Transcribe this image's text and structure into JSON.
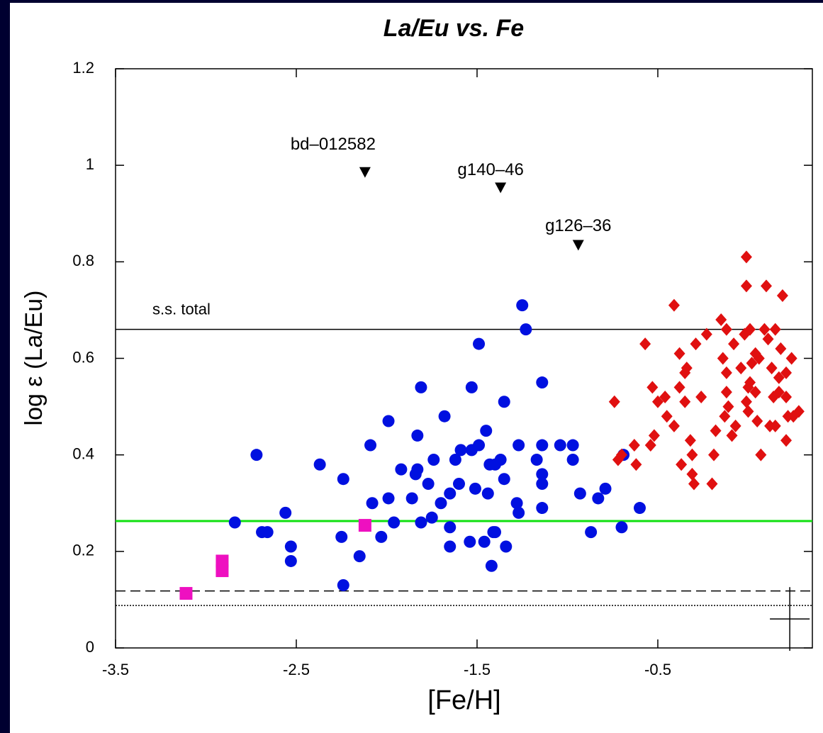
{
  "chart_data": {
    "type": "scatter",
    "title": "La/Eu  vs. Fe",
    "xlabel": "[Fe/H]",
    "ylabel": "log ε (La/Eu)",
    "xlim": [
      -3.5,
      0.355
    ],
    "ylim": [
      0,
      1.2
    ],
    "xticks": [
      -3.5,
      -2.5,
      -1.5,
      -0.5
    ],
    "yticks": [
      0,
      0.2,
      0.4,
      0.6,
      0.8,
      1,
      1.2
    ],
    "series": [
      {
        "marker": "circle",
        "color": "#0010e0",
        "x": [
          -2.72,
          -2.84,
          -2.69,
          -2.66,
          -2.56,
          -2.53,
          -2.53,
          -2.37,
          -2.24,
          -2.25,
          -2.24,
          -2.15,
          -2.09,
          -2.08,
          -2.03,
          -1.99,
          -1.99,
          -1.96,
          -1.92,
          -1.86,
          -1.84,
          -1.81,
          -1.83,
          -1.81,
          -1.83,
          -1.77,
          -1.75,
          -1.68,
          -1.74,
          -1.7,
          -1.65,
          -1.62,
          -1.65,
          -1.65,
          -1.6,
          -1.59,
          -1.53,
          -1.49,
          -1.53,
          -1.54,
          -1.49,
          -1.51,
          -1.46,
          -1.45,
          -1.43,
          -1.42,
          -1.4,
          -1.44,
          -1.4,
          -1.35,
          -1.35,
          -1.34,
          -1.28,
          -1.27,
          -1.27,
          -1.25,
          -1.23,
          -1.17,
          -1.14,
          -1.14,
          -1.14,
          -1.14,
          -1.14,
          -1.04,
          -0.97,
          -0.97,
          -0.93,
          -0.87,
          -0.83,
          -0.79,
          -0.69,
          -0.7,
          -0.6,
          -1.37,
          -1.41
        ],
        "y": [
          0.4,
          0.26,
          0.24,
          0.24,
          0.28,
          0.21,
          0.18,
          0.38,
          0.35,
          0.23,
          0.13,
          0.19,
          0.42,
          0.3,
          0.23,
          0.31,
          0.47,
          0.26,
          0.37,
          0.31,
          0.36,
          0.54,
          0.44,
          0.26,
          0.37,
          0.34,
          0.27,
          0.48,
          0.39,
          0.3,
          0.32,
          0.39,
          0.21,
          0.25,
          0.34,
          0.41,
          0.41,
          0.42,
          0.54,
          0.22,
          0.63,
          0.33,
          0.22,
          0.45,
          0.38,
          0.17,
          0.38,
          0.32,
          0.24,
          0.51,
          0.35,
          0.21,
          0.3,
          0.28,
          0.42,
          0.71,
          0.66,
          0.39,
          0.55,
          0.42,
          0.36,
          0.34,
          0.29,
          0.42,
          0.42,
          0.39,
          0.32,
          0.24,
          0.31,
          0.33,
          0.4,
          0.25,
          0.29,
          0.39,
          0.24
        ]
      },
      {
        "marker": "diamond",
        "color": "#e01010",
        "x": [
          -0.74,
          -0.7,
          -0.63,
          -0.62,
          -0.57,
          -0.54,
          -0.53,
          -0.52,
          -0.5,
          -0.46,
          -0.45,
          -0.41,
          -0.41,
          -0.38,
          -0.38,
          -0.37,
          -0.35,
          -0.35,
          -0.34,
          -0.32,
          -0.31,
          -0.31,
          -0.3,
          -0.29,
          -0.26,
          -0.23,
          -0.2,
          -0.19,
          -0.18,
          -0.15,
          -0.14,
          -0.13,
          -0.12,
          -0.12,
          -0.12,
          -0.11,
          -0.09,
          -0.08,
          -0.07,
          -0.04,
          -0.02,
          -0.01,
          0,
          0,
          0.01,
          -0.01,
          0.01,
          0.02,
          0.04,
          0.04,
          0.05,
          0.06,
          0.07,
          0.09,
          0.1,
          0.11,
          0.12,
          0.13,
          0.14,
          0.15,
          0.15,
          0.17,
          0.17,
          0.18,
          0.19,
          0.21,
          0.21,
          0.21,
          0.22,
          0.24,
          0.25,
          0.28,
          -0.01,
          -0.72
        ],
        "y": [
          0.51,
          0.4,
          0.42,
          0.38,
          0.63,
          0.42,
          0.54,
          0.44,
          0.51,
          0.52,
          0.48,
          0.46,
          0.71,
          0.61,
          0.54,
          0.38,
          0.57,
          0.51,
          0.58,
          0.43,
          0.4,
          0.36,
          0.34,
          0.63,
          0.52,
          0.65,
          0.34,
          0.4,
          0.45,
          0.68,
          0.6,
          0.48,
          0.66,
          0.53,
          0.57,
          0.5,
          0.44,
          0.63,
          0.46,
          0.58,
          0.65,
          0.51,
          0.54,
          0.49,
          0.66,
          0.75,
          0.55,
          0.59,
          0.61,
          0.53,
          0.47,
          0.6,
          0.4,
          0.66,
          0.75,
          0.64,
          0.46,
          0.58,
          0.52,
          0.66,
          0.46,
          0.53,
          0.56,
          0.62,
          0.73,
          0.57,
          0.52,
          0.43,
          0.48,
          0.6,
          0.48,
          0.49,
          0.81,
          0.39
        ]
      },
      {
        "marker": "square",
        "color": "#ee10c0",
        "x": [
          -3.11,
          -2.91,
          -2.91,
          -2.12
        ],
        "y": [
          0.113,
          0.16,
          0.18,
          0.254
        ]
      },
      {
        "marker": "triangle-down",
        "color": "#000000",
        "x": [
          -2.12,
          -1.37,
          -0.94
        ],
        "y": [
          0.986,
          0.954,
          0.835
        ],
        "labels": [
          "bd–012582",
          "g140–46",
          "g126–36"
        ]
      }
    ],
    "reference_lines": [
      {
        "y": 0.66,
        "color": "#000000",
        "style": "solid",
        "label": "s.s. total"
      },
      {
        "y": 0.263,
        "color": "#10e010",
        "style": "solid"
      },
      {
        "y": 0.118,
        "color": "#000000",
        "style": "dashed"
      },
      {
        "y": 0.088,
        "color": "#000000",
        "style": "dotted"
      }
    ],
    "error_cross": {
      "x": 0.23,
      "y": 0.06,
      "xerr": 0.11,
      "yerr": 0.066
    }
  }
}
